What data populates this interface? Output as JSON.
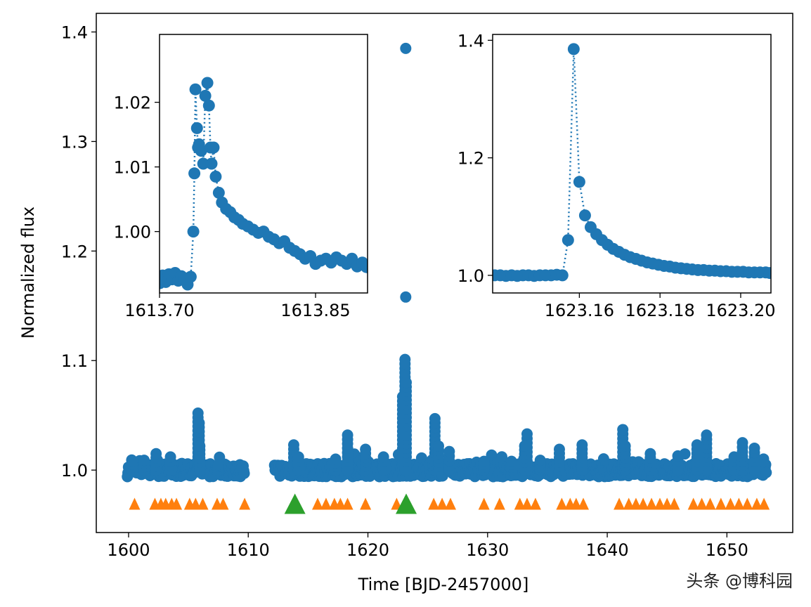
{
  "colors": {
    "data": "#1f77b4",
    "flare_marker": "#ff7f0e",
    "superflare_marker": "#2ca02c",
    "axes": "#000000"
  },
  "watermark": "头条 @博科园",
  "chart_data": [
    {
      "id": "main",
      "type": "scatter",
      "xlabel": "Time [BJD-2457000]",
      "ylabel": "Normalized flux",
      "xlim": [
        1597.3,
        1655.5
      ],
      "ylim": [
        0.943,
        1.417
      ],
      "xticks": [
        1600,
        1610,
        1620,
        1630,
        1640,
        1650
      ],
      "xtick_labels": [
        "1600",
        "1610",
        "1620",
        "1630",
        "1640",
        "1650"
      ],
      "yticks": [
        1.0,
        1.1,
        1.2,
        1.3,
        1.4
      ],
      "ytick_labels": [
        "1.0",
        "1.1",
        "1.2",
        "1.3",
        "1.4"
      ],
      "grid": false,
      "lightcurve_segments": [
        [
          1599.9,
          1609.7
        ],
        [
          1612.2,
          1653.3
        ]
      ],
      "baseline_flux": 1.0,
      "flare_peaks": [
        {
          "x": 1600.3,
          "y": 1.008
        },
        {
          "x": 1601.3,
          "y": 1.009
        },
        {
          "x": 1602.3,
          "y": 1.015
        },
        {
          "x": 1603.5,
          "y": 1.012
        },
        {
          "x": 1605.8,
          "y": 1.052
        },
        {
          "x": 1605.9,
          "y": 1.043
        },
        {
          "x": 1605.95,
          "y": 1.022
        },
        {
          "x": 1607.5,
          "y": 1.005
        },
        {
          "x": 1613.8,
          "y": 1.023
        },
        {
          "x": 1614.2,
          "y": 1.012
        },
        {
          "x": 1617.3,
          "y": 1.01
        },
        {
          "x": 1618.3,
          "y": 1.032
        },
        {
          "x": 1619.8,
          "y": 1.019
        },
        {
          "x": 1621.3,
          "y": 1.012
        },
        {
          "x": 1622.9,
          "y": 1.067
        },
        {
          "x": 1623.1,
          "y": 1.101
        },
        {
          "x": 1623.2,
          "y": 1.08
        },
        {
          "x": 1625.6,
          "y": 1.047
        },
        {
          "x": 1625.9,
          "y": 1.022
        },
        {
          "x": 1626.8,
          "y": 1.017
        },
        {
          "x": 1629.7,
          "y": 1.008
        },
        {
          "x": 1632.0,
          "y": 1.008
        },
        {
          "x": 1633.3,
          "y": 1.033
        },
        {
          "x": 1633.1,
          "y": 1.022
        },
        {
          "x": 1634.4,
          "y": 1.009
        },
        {
          "x": 1636.0,
          "y": 1.019
        },
        {
          "x": 1637.9,
          "y": 1.023
        },
        {
          "x": 1641.3,
          "y": 1.037
        },
        {
          "x": 1641.5,
          "y": 1.022
        },
        {
          "x": 1643.6,
          "y": 1.015
        },
        {
          "x": 1645.9,
          "y": 1.013
        },
        {
          "x": 1647.5,
          "y": 1.023
        },
        {
          "x": 1648.3,
          "y": 1.032
        },
        {
          "x": 1650.6,
          "y": 1.012
        },
        {
          "x": 1651.3,
          "y": 1.025
        },
        {
          "x": 1652.3,
          "y": 1.02
        }
      ],
      "outlier_points": [
        {
          "x": 1623.16,
          "y": 1.385
        },
        {
          "x": 1623.16,
          "y": 1.158
        }
      ],
      "flare_markers_orange": [
        1600.5,
        1602.2,
        1602.7,
        1603.1,
        1603.6,
        1604.0,
        1605.1,
        1605.6,
        1606.2,
        1607.4,
        1607.9,
        1609.7,
        1615.8,
        1616.5,
        1617.2,
        1617.7,
        1618.3,
        1619.8,
        1622.4,
        1625.5,
        1626.2,
        1626.9,
        1629.7,
        1631.0,
        1632.7,
        1633.3,
        1634.0,
        1636.2,
        1636.9,
        1637.4,
        1638.0,
        1641.0,
        1641.8,
        1642.4,
        1643.0,
        1643.7,
        1644.4,
        1645.0,
        1645.6,
        1647.2,
        1647.9,
        1648.6,
        1649.5,
        1650.3,
        1651.0,
        1651.7,
        1652.5,
        1653.1
      ],
      "flare_markers_green": [
        1613.9,
        1623.2
      ],
      "marker_y": 0.969
    },
    {
      "id": "inset-left",
      "type": "line",
      "xlim": [
        1613.7,
        1613.9
      ],
      "ylim": [
        0.9905,
        1.0305
      ],
      "xticks": [
        1613.7,
        1613.85
      ],
      "xtick_labels": [
        "1613.70",
        "1613.85"
      ],
      "yticks": [
        1.0,
        1.01,
        1.02
      ],
      "ytick_labels": [
        "1.00",
        "1.01",
        "1.02"
      ],
      "linestyle": "dotted",
      "x": [
        1613.7,
        1613.703,
        1613.706,
        1613.709,
        1613.712,
        1613.715,
        1613.718,
        1613.721,
        1613.724,
        1613.727,
        1613.73,
        1613.7325,
        1613.7335,
        1613.7345,
        1613.736,
        1613.737,
        1613.738,
        1613.74,
        1613.742,
        1613.744,
        1613.746,
        1613.7475,
        1613.749,
        1613.75,
        1613.752,
        1613.754,
        1613.757,
        1613.76,
        1613.764,
        1613.768,
        1613.772,
        1613.776,
        1613.78,
        1613.785,
        1613.79,
        1613.795,
        1613.8,
        1613.805,
        1613.81,
        1613.815,
        1613.82,
        1613.825,
        1613.83,
        1613.835,
        1613.84,
        1613.845,
        1613.85,
        1613.855,
        1613.86,
        1613.865,
        1613.87,
        1613.875,
        1613.88,
        1613.885,
        1613.89,
        1613.895,
        1613.899
      ],
      "y": [
        0.992,
        0.9932,
        0.9922,
        0.9934,
        0.9926,
        0.9936,
        0.9924,
        0.9931,
        0.9928,
        0.9918,
        0.993,
        1.0,
        1.009,
        1.022,
        1.016,
        1.013,
        1.0135,
        1.0125,
        1.0105,
        1.021,
        1.023,
        1.0195,
        1.013,
        1.0105,
        1.013,
        1.0085,
        1.006,
        1.0045,
        1.0035,
        1.003,
        1.0022,
        1.0018,
        1.0012,
        1.0008,
        1.0003,
        0.9998,
        1.0,
        0.9992,
        0.9988,
        0.9982,
        0.9985,
        0.9975,
        0.997,
        0.9965,
        0.9958,
        0.9962,
        0.995,
        0.9955,
        0.9958,
        0.9952,
        0.996,
        0.9955,
        0.995,
        0.9958,
        0.9946,
        0.9952,
        0.9945
      ]
    },
    {
      "id": "inset-right",
      "type": "line",
      "xlim": [
        1623.1385,
        1623.2075
      ],
      "ylim": [
        0.97,
        1.41
      ],
      "xticks": [
        1623.16,
        1623.18,
        1623.2
      ],
      "xtick_labels": [
        "1623.16",
        "1623.18",
        "1623.20"
      ],
      "yticks": [
        1.0,
        1.2,
        1.4
      ],
      "ytick_labels": [
        "1.0",
        "1.2",
        "1.4"
      ],
      "linestyle": "dotted",
      "x": [
        1623.139,
        1623.1404,
        1623.1418,
        1623.1432,
        1623.1446,
        1623.146,
        1623.1474,
        1623.1488,
        1623.1502,
        1623.1516,
        1623.153,
        1623.1544,
        1623.1558,
        1623.1572,
        1623.1586,
        1623.16,
        1623.1614,
        1623.1628,
        1623.1642,
        1623.1656,
        1623.167,
        1623.1684,
        1623.1698,
        1623.1712,
        1623.1726,
        1623.174,
        1623.1754,
        1623.1768,
        1623.1782,
        1623.1796,
        1623.181,
        1623.1824,
        1623.1838,
        1623.1852,
        1623.1866,
        1623.188,
        1623.1894,
        1623.1908,
        1623.1922,
        1623.1936,
        1623.195,
        1623.1964,
        1623.1978,
        1623.1992,
        1623.2006,
        1623.202,
        1623.2034,
        1623.2048,
        1623.2062,
        1623.2072
      ],
      "y": [
        1.0,
        1.0,
        0.999,
        1.0,
        0.999,
        1.0,
        1.0,
        0.999,
        1.0,
        1.0,
        1.0,
        1.001,
        1.0,
        1.06,
        1.385,
        1.159,
        1.102,
        1.082,
        1.07,
        1.06,
        1.052,
        1.045,
        1.04,
        1.035,
        1.031,
        1.028,
        1.025,
        1.022,
        1.02,
        1.018,
        1.016,
        1.015,
        1.013,
        1.012,
        1.011,
        1.01,
        1.009,
        1.009,
        1.008,
        1.008,
        1.007,
        1.007,
        1.006,
        1.006,
        1.006,
        1.005,
        1.005,
        1.005,
        1.005,
        1.004
      ]
    }
  ]
}
